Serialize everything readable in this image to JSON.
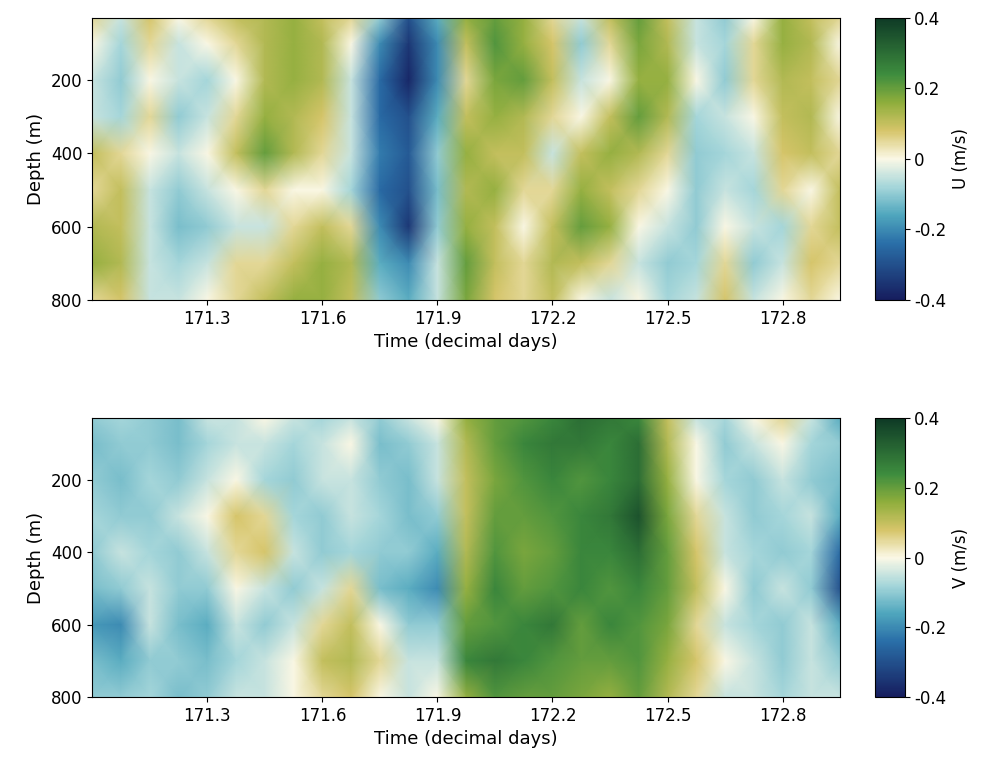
{
  "chart_data": [
    {
      "type": "heatmap",
      "xlabel": "Time (decimal days)",
      "ylabel": "Depth (m)",
      "x": [
        171.0,
        171.075,
        171.15,
        171.225,
        171.3,
        171.375,
        171.45,
        171.525,
        171.6,
        171.675,
        171.75,
        171.825,
        171.9,
        171.975,
        172.05,
        172.125,
        172.2,
        172.275,
        172.35,
        172.425,
        172.5,
        172.575,
        172.65,
        172.725,
        172.8,
        172.875,
        172.95
      ],
      "y": [
        30,
        100,
        200,
        300,
        400,
        500,
        600,
        700,
        800
      ],
      "cells": [
        [
          0.05,
          -0.05,
          0.08,
          0.0,
          0.05,
          0.1,
          0.12,
          0.15,
          0.1,
          0.05,
          -0.1,
          -0.3,
          -0.15,
          0.15,
          0.2,
          0.15,
          0.05,
          -0.05,
          0.1,
          0.2,
          0.1,
          -0.05,
          -0.1,
          0.0,
          0.15,
          0.1,
          0.05
        ],
        [
          0.0,
          -0.08,
          0.05,
          -0.05,
          0.0,
          0.05,
          0.12,
          0.15,
          0.12,
          0.0,
          -0.2,
          -0.35,
          -0.2,
          0.1,
          0.22,
          0.15,
          0.08,
          -0.1,
          0.05,
          0.18,
          0.12,
          -0.05,
          -0.08,
          0.05,
          0.15,
          0.12,
          0.0
        ],
        [
          -0.05,
          -0.1,
          0.0,
          -0.05,
          -0.08,
          0.0,
          0.12,
          0.15,
          0.12,
          -0.05,
          -0.25,
          -0.38,
          -0.2,
          0.05,
          0.18,
          0.2,
          0.1,
          -0.05,
          0.0,
          0.15,
          0.15,
          0.0,
          -0.1,
          0.05,
          0.12,
          0.1,
          0.05
        ],
        [
          -0.05,
          -0.08,
          0.05,
          -0.1,
          -0.05,
          0.05,
          0.15,
          0.12,
          0.08,
          -0.05,
          -0.25,
          -0.3,
          -0.15,
          0.1,
          0.15,
          0.12,
          0.05,
          0.0,
          0.1,
          0.2,
          0.12,
          -0.08,
          -0.05,
          0.0,
          0.1,
          0.12,
          0.0
        ],
        [
          0.1,
          0.05,
          0.0,
          -0.05,
          0.0,
          0.1,
          0.2,
          0.12,
          0.05,
          -0.05,
          -0.22,
          -0.28,
          -0.1,
          0.15,
          0.1,
          0.1,
          -0.05,
          0.1,
          0.15,
          0.12,
          0.05,
          -0.1,
          -0.08,
          -0.05,
          0.08,
          0.1,
          0.05
        ],
        [
          0.05,
          0.1,
          -0.05,
          -0.1,
          -0.05,
          0.0,
          0.05,
          0.0,
          0.0,
          -0.08,
          -0.25,
          -0.3,
          -0.12,
          0.12,
          0.15,
          0.05,
          0.05,
          0.15,
          0.1,
          0.05,
          0.0,
          -0.1,
          -0.05,
          -0.08,
          0.05,
          0.0,
          0.1
        ],
        [
          0.12,
          0.1,
          -0.05,
          -0.12,
          -0.1,
          -0.05,
          -0.05,
          0.05,
          0.1,
          0.05,
          -0.2,
          -0.35,
          -0.1,
          0.15,
          0.1,
          0.0,
          0.1,
          0.2,
          0.15,
          0.0,
          -0.05,
          -0.1,
          0.0,
          -0.05,
          -0.08,
          0.05,
          0.1
        ],
        [
          0.15,
          0.12,
          -0.05,
          -0.08,
          -0.05,
          0.05,
          0.05,
          0.1,
          0.15,
          0.12,
          -0.15,
          -0.2,
          -0.05,
          0.2,
          0.1,
          0.05,
          0.12,
          0.1,
          0.05,
          -0.05,
          -0.1,
          -0.08,
          0.05,
          -0.1,
          -0.05,
          0.08,
          0.05
        ],
        [
          0.05,
          0.08,
          -0.05,
          -0.05,
          0.0,
          0.05,
          0.1,
          0.15,
          0.15,
          0.1,
          -0.1,
          -0.15,
          -0.05,
          0.18,
          0.08,
          0.05,
          0.1,
          0.0,
          -0.05,
          0.0,
          -0.08,
          -0.05,
          0.08,
          -0.05,
          0.0,
          0.05,
          0.0
        ]
      ],
      "xlim": [
        171.0,
        172.95
      ],
      "ylim": [
        800,
        30
      ],
      "xticks": [
        171.3,
        171.6,
        171.9,
        172.2,
        172.5,
        172.8
      ],
      "yticks": [
        200,
        400,
        600,
        800
      ],
      "colorbar": {
        "label": "U (m/s)",
        "range": [
          -0.4,
          0.4
        ],
        "ticks": [
          -0.4,
          -0.2,
          0,
          0.2,
          0.4
        ]
      }
    },
    {
      "type": "heatmap",
      "xlabel": "Time (decimal days)",
      "ylabel": "Depth (m)",
      "x": [
        171.0,
        171.075,
        171.15,
        171.225,
        171.3,
        171.375,
        171.45,
        171.525,
        171.6,
        171.675,
        171.75,
        171.825,
        171.9,
        171.975,
        172.05,
        172.125,
        172.2,
        172.275,
        172.35,
        172.425,
        172.5,
        172.575,
        172.65,
        172.725,
        172.8,
        172.875,
        172.95
      ],
      "y": [
        30,
        100,
        200,
        300,
        400,
        500,
        600,
        700,
        800
      ],
      "cells": [
        [
          -0.1,
          -0.08,
          -0.1,
          -0.12,
          -0.05,
          -0.05,
          0.0,
          -0.05,
          -0.08,
          -0.05,
          -0.1,
          -0.05,
          0.0,
          0.15,
          0.2,
          0.22,
          0.25,
          0.3,
          0.28,
          0.25,
          0.1,
          -0.05,
          -0.08,
          0.0,
          0.05,
          -0.05,
          -0.15
        ],
        [
          -0.12,
          -0.1,
          -0.1,
          -0.12,
          -0.08,
          -0.05,
          -0.05,
          -0.08,
          -0.05,
          0.0,
          -0.12,
          -0.1,
          -0.05,
          0.12,
          0.2,
          0.25,
          0.28,
          0.28,
          0.25,
          0.3,
          0.12,
          0.0,
          -0.1,
          -0.05,
          0.0,
          -0.08,
          -0.1
        ],
        [
          -0.1,
          -0.12,
          -0.08,
          -0.1,
          -0.05,
          0.0,
          -0.08,
          -0.1,
          -0.05,
          -0.05,
          -0.1,
          -0.12,
          -0.05,
          0.1,
          0.18,
          0.22,
          0.25,
          0.22,
          0.25,
          0.3,
          0.15,
          0.0,
          -0.08,
          -0.1,
          -0.05,
          -0.1,
          -0.12
        ],
        [
          -0.08,
          -0.1,
          -0.1,
          -0.05,
          0.0,
          0.08,
          0.05,
          -0.08,
          -0.1,
          -0.05,
          -0.08,
          -0.12,
          -0.1,
          0.1,
          0.2,
          0.2,
          0.22,
          0.25,
          0.28,
          0.35,
          0.18,
          0.05,
          -0.05,
          -0.1,
          -0.08,
          -0.05,
          -0.15
        ],
        [
          -0.1,
          -0.05,
          -0.08,
          -0.1,
          -0.05,
          0.05,
          0.08,
          -0.05,
          -0.1,
          -0.08,
          -0.1,
          -0.1,
          -0.15,
          0.12,
          0.22,
          0.18,
          0.2,
          0.25,
          0.25,
          0.3,
          0.2,
          0.08,
          -0.05,
          -0.08,
          -0.1,
          -0.08,
          -0.25
        ],
        [
          -0.12,
          -0.1,
          -0.05,
          -0.1,
          -0.1,
          0.0,
          -0.05,
          -0.1,
          -0.05,
          0.05,
          -0.12,
          -0.15,
          -0.2,
          0.15,
          0.25,
          0.2,
          0.22,
          0.25,
          0.22,
          0.25,
          0.2,
          0.1,
          0.0,
          -0.1,
          -0.05,
          -0.1,
          -0.3
        ],
        [
          -0.18,
          -0.2,
          -0.05,
          -0.12,
          -0.15,
          -0.05,
          -0.1,
          -0.05,
          0.05,
          0.1,
          0.0,
          -0.1,
          -0.1,
          0.2,
          0.22,
          0.25,
          0.28,
          0.2,
          0.25,
          0.22,
          0.18,
          0.05,
          -0.05,
          -0.08,
          -0.1,
          -0.05,
          -0.15
        ],
        [
          -0.12,
          -0.15,
          -0.1,
          -0.1,
          -0.12,
          -0.08,
          -0.05,
          0.0,
          0.1,
          0.12,
          0.05,
          -0.05,
          -0.05,
          0.25,
          0.28,
          0.25,
          0.22,
          0.2,
          0.2,
          0.22,
          0.15,
          0.08,
          0.0,
          -0.05,
          -0.1,
          -0.05,
          -0.1
        ],
        [
          -0.1,
          -0.1,
          -0.08,
          -0.12,
          -0.1,
          -0.05,
          -0.05,
          0.0,
          0.05,
          0.08,
          0.0,
          -0.05,
          0.0,
          0.15,
          0.22,
          0.2,
          0.2,
          0.18,
          0.15,
          0.2,
          0.12,
          0.05,
          -0.05,
          -0.05,
          -0.08,
          -0.05,
          -0.05
        ]
      ],
      "xlim": [
        171.0,
        172.95
      ],
      "ylim": [
        800,
        30
      ],
      "xticks": [
        171.3,
        171.6,
        171.9,
        172.2,
        172.5,
        172.8
      ],
      "yticks": [
        200,
        400,
        600,
        800
      ],
      "colorbar": {
        "label": "V (m/s)",
        "range": [
          -0.4,
          0.4
        ],
        "ticks": [
          -0.4,
          -0.2,
          0,
          0.2,
          0.4
        ]
      }
    }
  ]
}
